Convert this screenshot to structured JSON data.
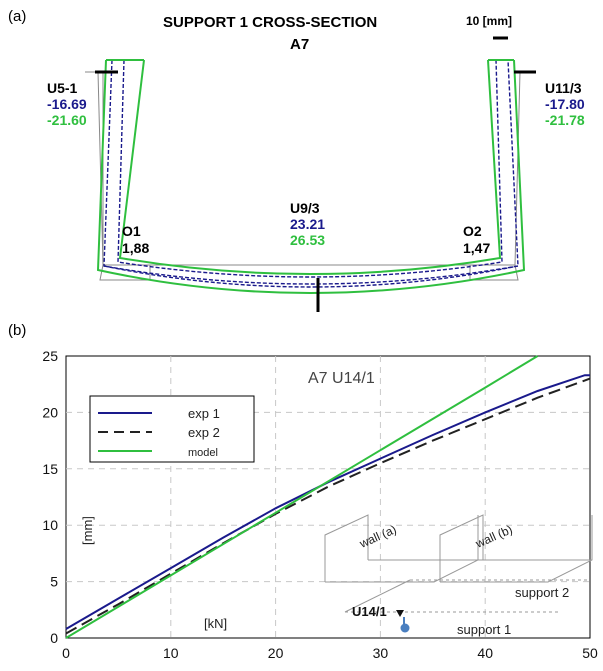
{
  "panel_a": {
    "tag": "(a)",
    "title": "SUPPORT 1 CROSS-SECTION",
    "scale_label": "10 [mm]",
    "subtitle": "A7",
    "points": [
      {
        "name": "U5-1",
        "exp": "-16.69",
        "model": "-21.60"
      },
      {
        "name": "U11/3",
        "exp": "-17.80",
        "model": "-21.78"
      },
      {
        "name": "U9/3",
        "exp": "23.21",
        "model": "26.53"
      },
      {
        "name": "O1",
        "value": "1,88"
      },
      {
        "name": "O2",
        "value": "1,47"
      }
    ],
    "colors": {
      "exp1": "#1a1a8c",
      "model": "#2fbf3f"
    }
  },
  "panel_b": {
    "tag": "(b)",
    "inset": {
      "wall_a": "wall (a)",
      "wall_b": "wall (b)",
      "support_1": "support 1",
      "support_2": "support 2",
      "sensor": "U14/1"
    }
  },
  "chart_data": {
    "type": "line",
    "title": "A7 U14/1",
    "xlabel": "[kN]",
    "ylabel": "[mm]",
    "xlim": [
      0,
      50
    ],
    "ylim": [
      0,
      25
    ],
    "xticks": [
      "0",
      "10",
      "20",
      "30",
      "40",
      "50"
    ],
    "yticks": [
      "0",
      "5",
      "10",
      "15",
      "20",
      "25"
    ],
    "grid": true,
    "legend_position": "top-left",
    "series": [
      {
        "name": "exp 1",
        "color": "#1a1a8c",
        "dash": "solid",
        "x": [
          0,
          5,
          10,
          15,
          20,
          25,
          30,
          35,
          40,
          45,
          49.5,
          50
        ],
        "y": [
          0.8,
          3.5,
          6.2,
          8.9,
          11.5,
          13.8,
          15.9,
          18.0,
          20.0,
          21.9,
          23.3,
          23.3
        ]
      },
      {
        "name": "exp 2",
        "color": "#222222",
        "dash": "dashed",
        "x": [
          0,
          5,
          10,
          15,
          20,
          25,
          30,
          35,
          40,
          45,
          50
        ],
        "y": [
          0.4,
          3.0,
          5.7,
          8.4,
          11.0,
          13.4,
          15.5,
          17.5,
          19.4,
          21.3,
          23.0
        ]
      },
      {
        "name": "model",
        "color": "#2fbf3f",
        "dash": "solid",
        "x": [
          0,
          10,
          20,
          30,
          40,
          45
        ],
        "y": [
          0.0,
          5.55,
          11.1,
          16.65,
          22.2,
          25.0
        ]
      }
    ]
  }
}
